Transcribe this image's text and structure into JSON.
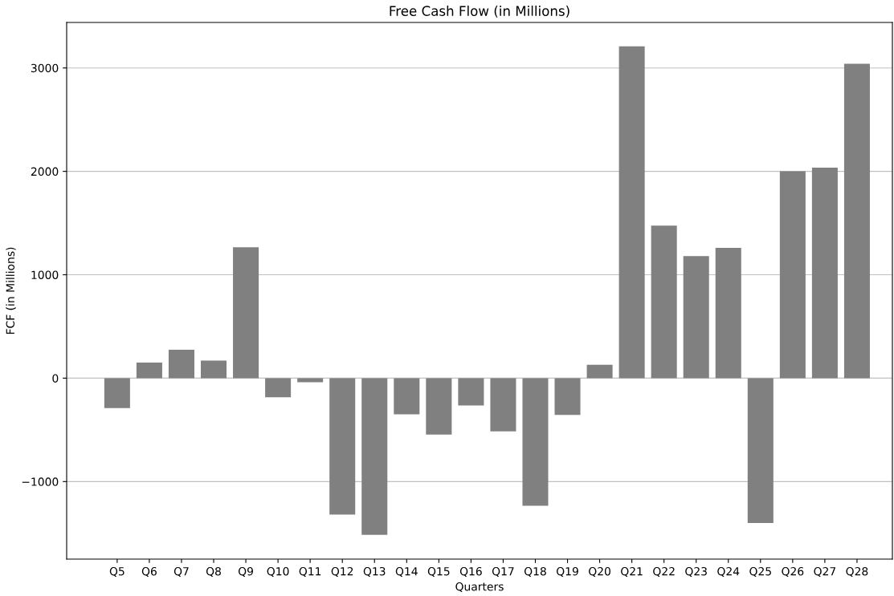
{
  "chart_data": {
    "type": "bar",
    "title": "Free Cash Flow (in Millions)",
    "xlabel": "Quarters",
    "ylabel": "FCF (in Millions)",
    "categories": [
      "Q5",
      "Q6",
      "Q7",
      "Q8",
      "Q9",
      "Q10",
      "Q11",
      "Q12",
      "Q13",
      "Q14",
      "Q15",
      "Q16",
      "Q17",
      "Q18",
      "Q19",
      "Q20",
      "Q21",
      "Q22",
      "Q23",
      "Q24",
      "Q25",
      "Q26",
      "Q27",
      "Q28"
    ],
    "values": [
      -290,
      150,
      275,
      170,
      1265,
      -185,
      -40,
      -1320,
      -1515,
      -350,
      -545,
      -265,
      -515,
      -1235,
      -355,
      130,
      3210,
      1475,
      1180,
      1260,
      -1400,
      2000,
      2035,
      3040
    ],
    "color": "#808080",
    "ylim": [
      -1750,
      3440
    ],
    "yticks": [
      -1000,
      0,
      1000,
      2000,
      3000
    ],
    "grid": "y"
  }
}
